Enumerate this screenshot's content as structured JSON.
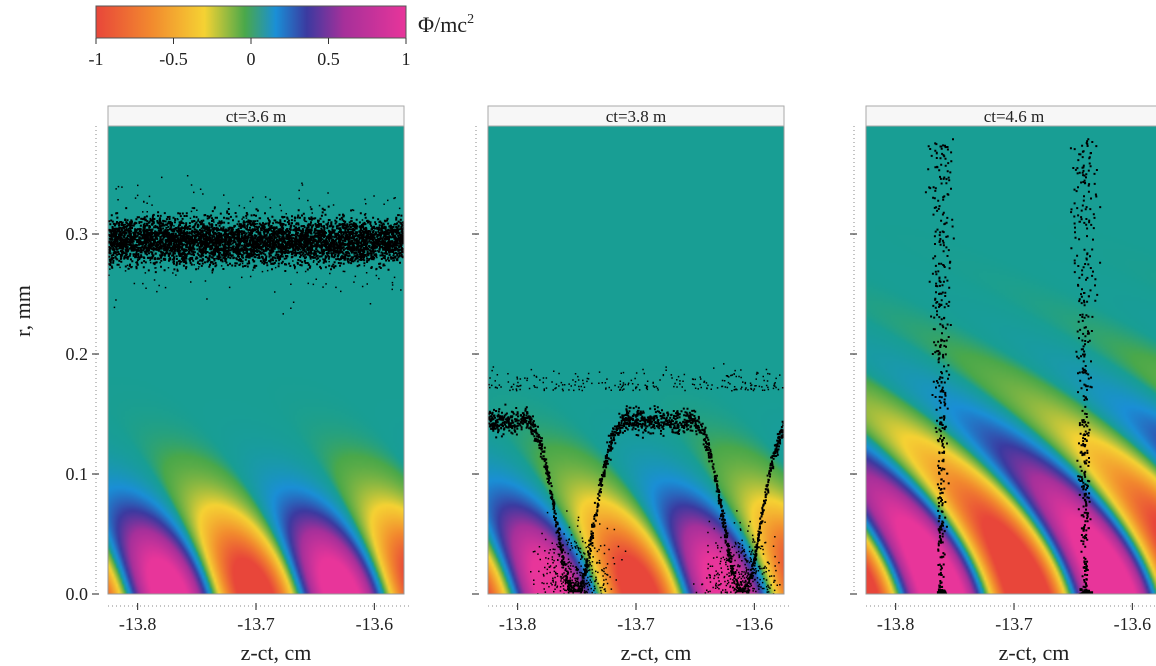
{
  "chart_data": {
    "type": "heatmap",
    "colorbar": {
      "label": "Φ/mc",
      "label_superscript": "2",
      "min": -1,
      "max": 1,
      "ticks": [
        "-1",
        "-0.5",
        "0",
        "0.5",
        "1"
      ],
      "colors": [
        "#e8463a",
        "#f28a2e",
        "#f5d233",
        "#4aa84a",
        "#1a8fd6",
        "#3b3aa0",
        "#a6309a",
        "#e8359a"
      ]
    },
    "ylabel": "r, mm",
    "y_ticks": [
      "0.0",
      "0.1",
      "0.2",
      "0.3"
    ],
    "ylim": [
      0,
      0.39
    ],
    "xlim": [
      -13.825,
      -13.575
    ],
    "panels": [
      {
        "title": "ct=3.6 m",
        "xlabel": "z-ct, cm",
        "x_ticks": [
          "-13.8",
          "-13.7",
          "-13.6"
        ],
        "electrons": "flat band at r ≈ 0.27–0.32 mm"
      },
      {
        "title": "ct=3.8 m",
        "xlabel": "z-ct, cm",
        "x_ticks": [
          "-13.8",
          "-13.7",
          "-13.6"
        ],
        "electrons": "scalloped band at r ≈ 0.13–0.16 mm dipping to r = 0 near z-ct ≈ -13.75 and -13.61 cm"
      },
      {
        "title": "ct=4.6 m",
        "xlabel": "z-ct, cm",
        "x_ticks": [
          "-13.8",
          "-13.7",
          "-13.6"
        ],
        "electrons": "vertical filaments at z-ct ≈ -13.76 and -13.64 cm, clumps at r = 0"
      }
    ]
  }
}
